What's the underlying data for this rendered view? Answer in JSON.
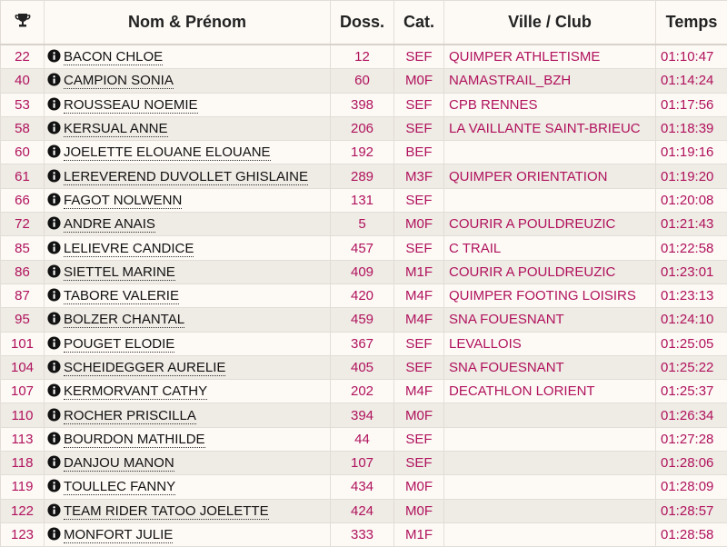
{
  "table": {
    "header": [
      "Nom & Prénom",
      "Doss.",
      "Cat.",
      "Ville / Club",
      "Temps"
    ],
    "rows": [
      {
        "rank": "22",
        "name": "BACON CHLOE",
        "bib": "12",
        "cat": "SEF",
        "club": "QUIMPER ATHLETISME",
        "time": "01:10:47"
      },
      {
        "rank": "40",
        "name": "CAMPION SONIA",
        "bib": "60",
        "cat": "M0F",
        "club": "NAMASTRAIL_BZH",
        "time": "01:14:24"
      },
      {
        "rank": "53",
        "name": "ROUSSEAU NOEMIE",
        "bib": "398",
        "cat": "SEF",
        "club": "CPB RENNES",
        "time": "01:17:56"
      },
      {
        "rank": "58",
        "name": "KERSUAL ANNE",
        "bib": "206",
        "cat": "SEF",
        "club": "LA VAILLANTE SAINT-BRIEUC",
        "time": "01:18:39"
      },
      {
        "rank": "60",
        "name": "JOELETTE ELOUANE ELOUANE",
        "bib": "192",
        "cat": "BEF",
        "time": "01:19:16"
      },
      {
        "rank": "61",
        "name": "LEREVEREND DUVOLLET GHISLAINE",
        "bib": "289",
        "cat": "M3F",
        "club": "QUIMPER ORIENTATION",
        "time": "01:19:20"
      },
      {
        "rank": "66",
        "name": "FAGOT NOLWENN",
        "bib": "131",
        "cat": "SEF",
        "time": "01:20:08"
      },
      {
        "rank": "72",
        "name": "ANDRE ANAIS",
        "bib": "5",
        "cat": "M0F",
        "club": "COURIR A POULDREUZIC",
        "time": "01:21:43"
      },
      {
        "rank": "85",
        "name": "LELIEVRE CANDICE",
        "bib": "457",
        "cat": "SEF",
        "club": "C TRAIL",
        "time": "01:22:58"
      },
      {
        "rank": "86",
        "name": "SIETTEL MARINE",
        "bib": "409",
        "cat": "M1F",
        "club": "COURIR A POULDREUZIC",
        "time": "01:23:01"
      },
      {
        "rank": "87",
        "name": "TABORE VALERIE",
        "bib": "420",
        "cat": "M4F",
        "club": "QUIMPER FOOTING LOISIRS",
        "time": "01:23:13"
      },
      {
        "rank": "95",
        "name": "BOLZER CHANTAL",
        "bib": "459",
        "cat": "M4F",
        "club": "SNA FOUESNANT",
        "time": "01:24:10"
      },
      {
        "rank": "101",
        "name": "POUGET ELODIE",
        "bib": "367",
        "cat": "SEF",
        "club": "LEVALLOIS",
        "time": "01:25:05"
      },
      {
        "rank": "104",
        "name": "SCHEIDEGGER AURELIE",
        "bib": "405",
        "cat": "SEF",
        "club": "SNA FOUESNANT",
        "time": "01:25:22"
      },
      {
        "rank": "107",
        "name": "KERMORVANT CATHY",
        "bib": "202",
        "cat": "M4F",
        "club": "DECATHLON LORIENT",
        "time": "01:25:37"
      },
      {
        "rank": "110",
        "name": "ROCHER PRISCILLA",
        "bib": "394",
        "cat": "M0F",
        "time": "01:26:34"
      },
      {
        "rank": "113",
        "name": "BOURDON MATHILDE",
        "bib": "44",
        "cat": "SEF",
        "time": "01:27:28"
      },
      {
        "rank": "118",
        "name": "DANJOU MANON",
        "bib": "107",
        "cat": "SEF",
        "time": "01:28:06"
      },
      {
        "rank": "119",
        "name": "TOULLEC FANNY",
        "bib": "434",
        "cat": "M0F",
        "time": "01:28:09"
      },
      {
        "rank": "122",
        "name": "TEAM RIDER TATOO JOELETTE",
        "bib": "424",
        "cat": "M0F",
        "time": "01:28:57"
      },
      {
        "rank": "123",
        "name": "MONFORT JULIE",
        "bib": "333",
        "cat": "M1F",
        "time": "01:28:58"
      }
    ]
  }
}
